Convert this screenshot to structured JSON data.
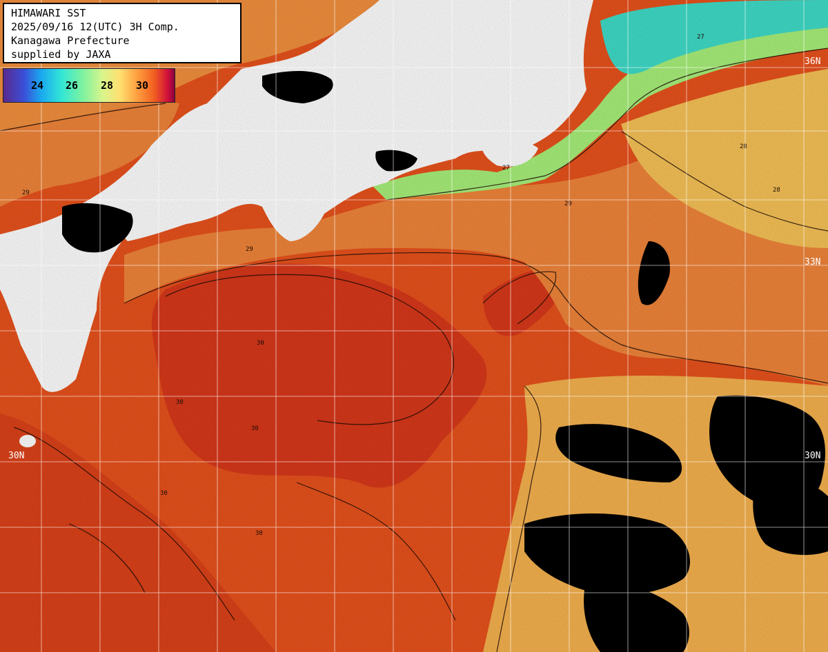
{
  "header": {
    "lines": [
      "HIMAWARI SST",
      "2025/09/16 12(UTC) 3H Comp.",
      "Kanagawa Prefecture",
      "supplied by JAXA"
    ]
  },
  "legend": {
    "labels": [
      "24",
      "26",
      "28",
      "30"
    ]
  },
  "latitude_labels": [
    "36N",
    "33N",
    "30N",
    "30N"
  ],
  "contour_labels": [
    "27",
    "28",
    "29",
    "30"
  ],
  "colors": {
    "warm_30": "#e8521c",
    "hot_31": "#d8381a",
    "temp_29": "#f3913c",
    "temp_28": "#f7c257",
    "temp_27": "#a8f07a",
    "temp_26": "#3fdcc8",
    "land": "#ffffff",
    "no_data": "#000000",
    "grid": "#ffffff"
  }
}
